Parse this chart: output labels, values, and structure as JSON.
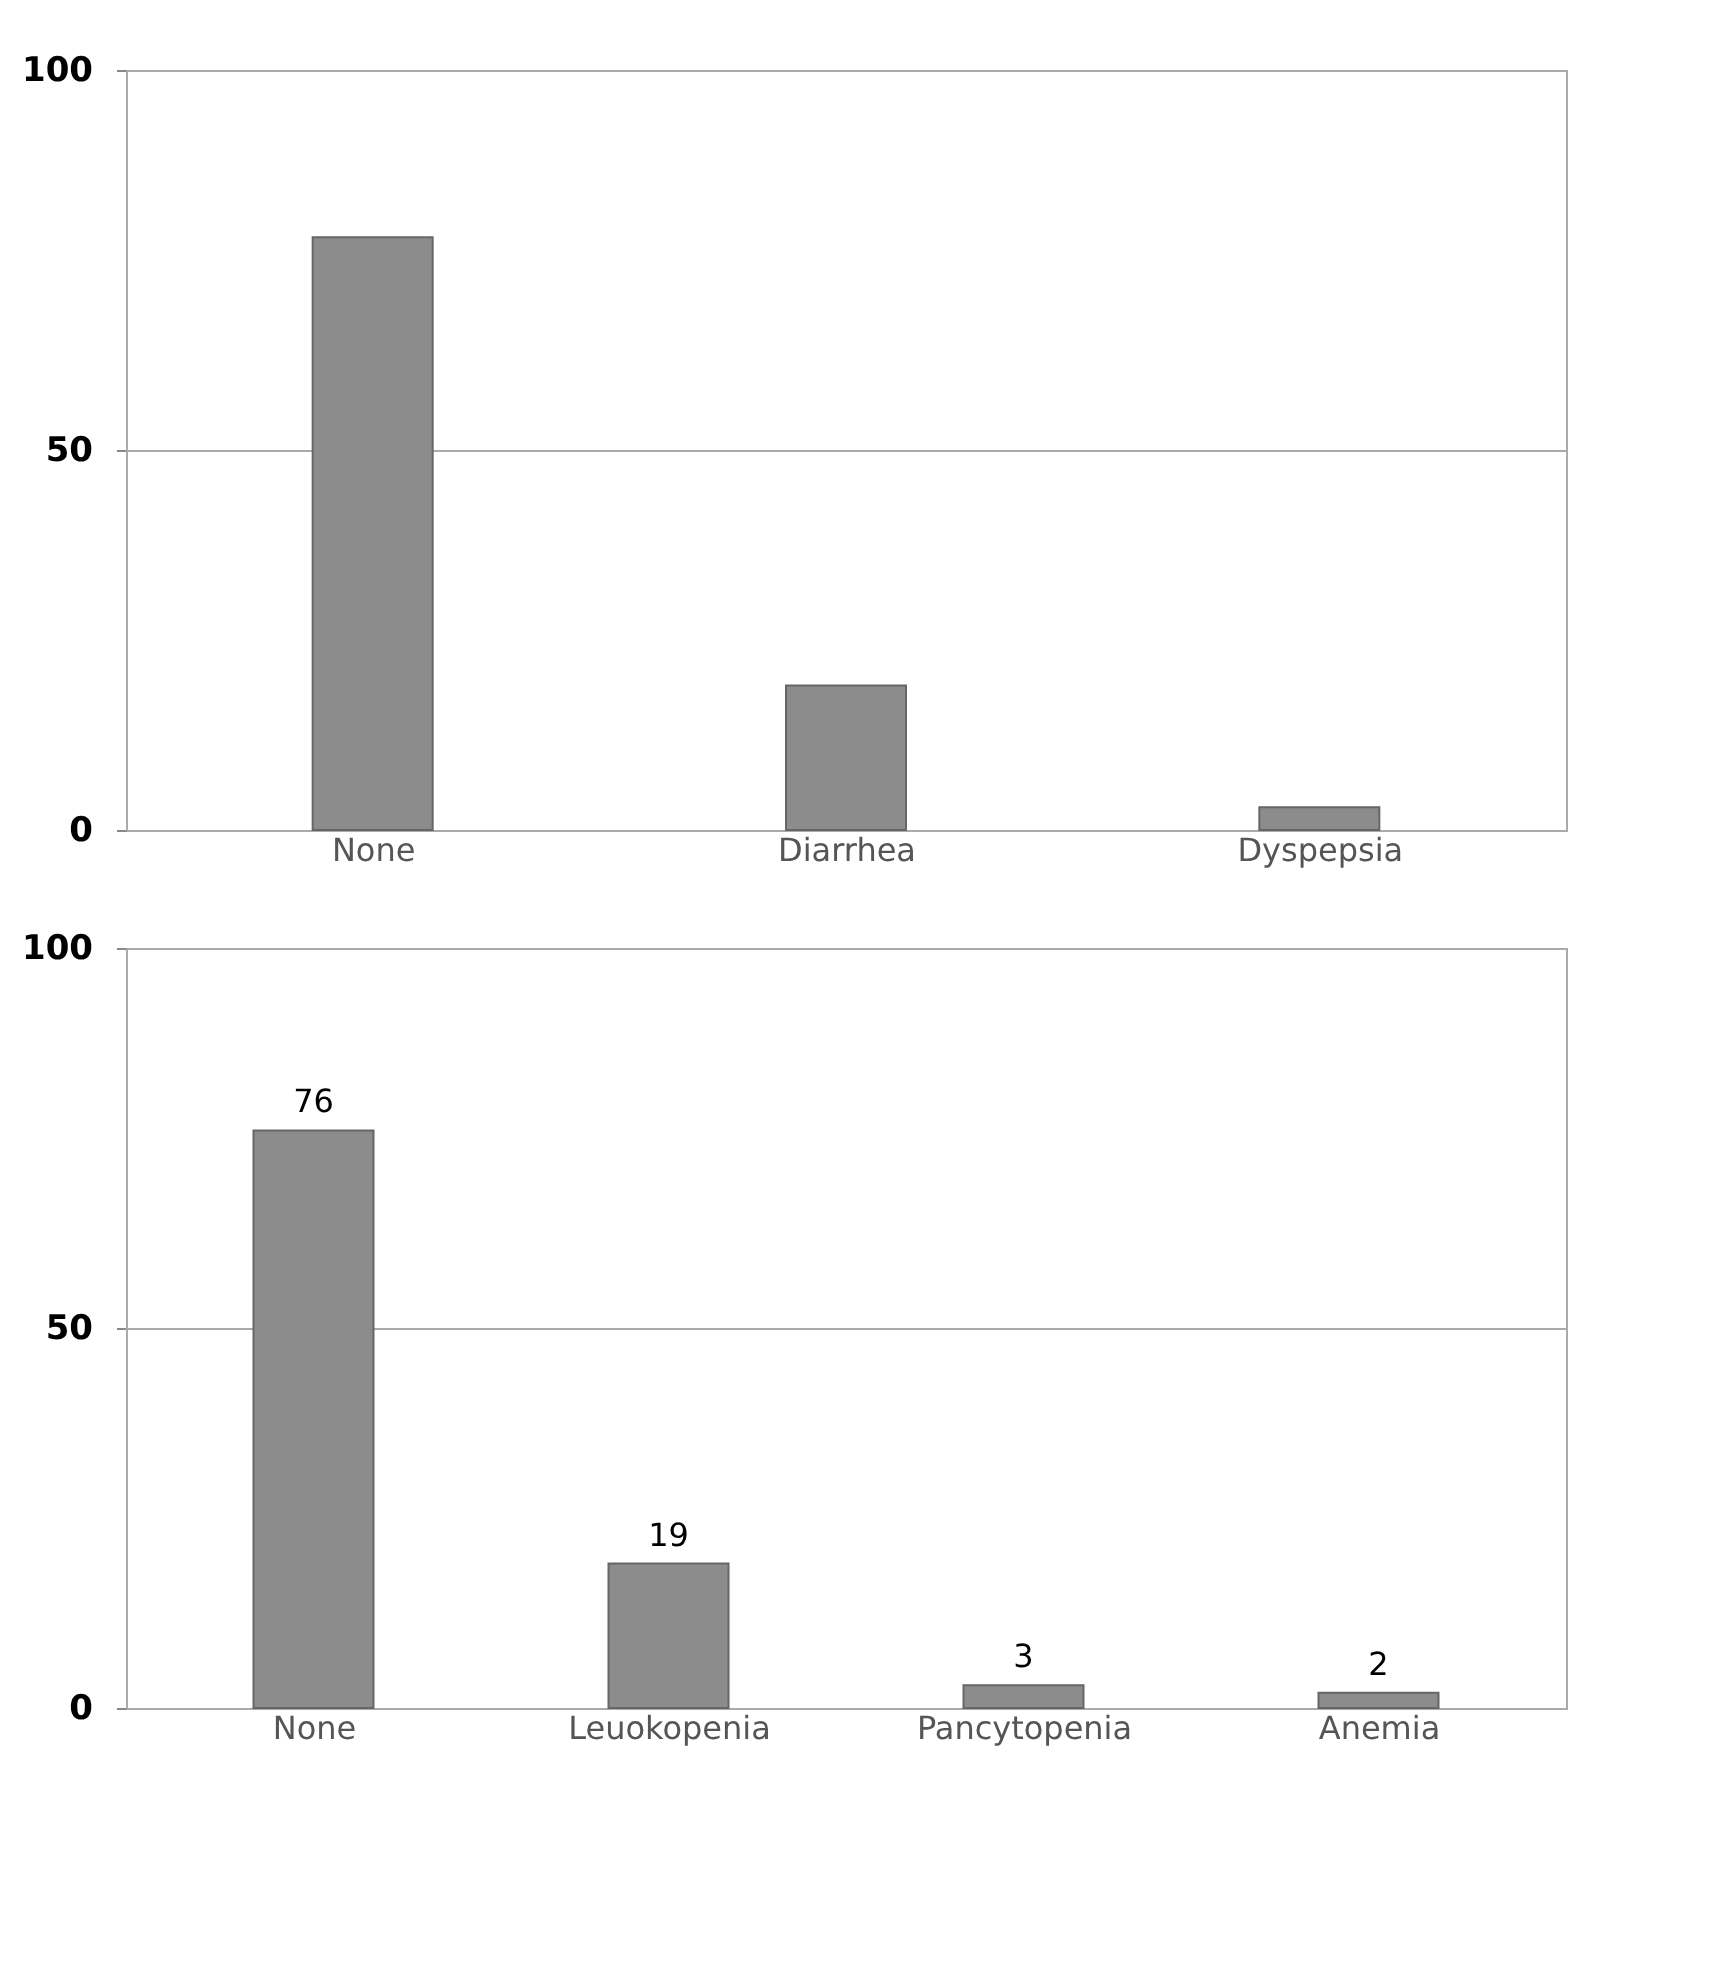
{
  "chart_data": [
    {
      "type": "bar",
      "categories": [
        "None",
        "Diarrhea",
        "Dyspepsia"
      ],
      "values": [
        78,
        19,
        3
      ],
      "color": "#8c8c8c",
      "ylim": [
        0,
        100
      ],
      "yticks": [
        0,
        50,
        100
      ],
      "grid": "y"
    },
    {
      "type": "bar",
      "categories": [
        "None",
        "Leuokopenia",
        "Pancytopenia",
        "Anemia"
      ],
      "values": [
        76,
        19,
        3,
        2
      ],
      "color": "#8c8c8c",
      "ylim": [
        0,
        100
      ],
      "yticks": [
        0,
        50,
        100
      ],
      "grid": "y",
      "data_labels": true
    }
  ]
}
